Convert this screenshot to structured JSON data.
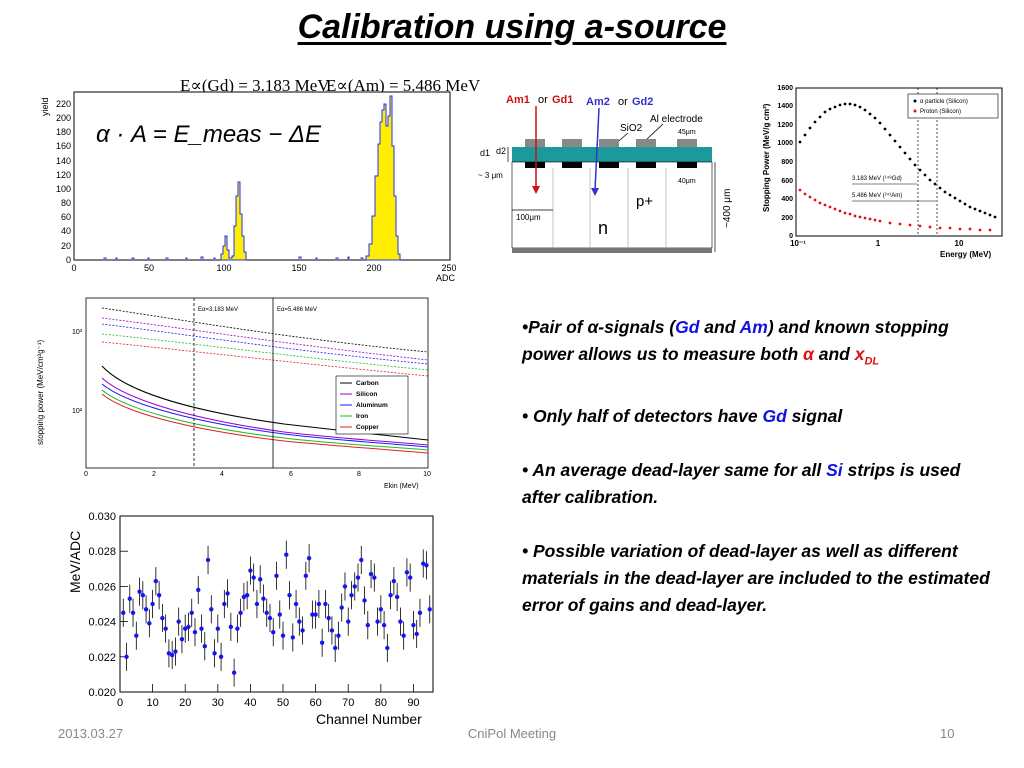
{
  "slide": {
    "title": "Calibration using a-source",
    "date": "2013.03.27",
    "meeting": "CniPol Meeting",
    "page": "10"
  },
  "equations": {
    "gd": "E∝(Gd) = 3.183 MeV",
    "am": "E∝(Am) = 5.486 MeV",
    "formula": "α · A = E_meas − ΔE"
  },
  "bullets": [
    {
      "parts": [
        {
          "text": "•Pair of α-signals (",
          "color": ""
        },
        {
          "text": "Gd",
          "color": "blue"
        },
        {
          "text": " and ",
          "color": ""
        },
        {
          "text": "Am",
          "color": "blue"
        },
        {
          "text": ") and known stopping power allows us to measure both ",
          "color": ""
        },
        {
          "text": "α",
          "color": "red"
        },
        {
          "text": " and ",
          "color": ""
        },
        {
          "text": "x",
          "color": "red"
        },
        {
          "text": "DL",
          "color": "red",
          "sub": true
        }
      ]
    },
    {
      "parts": [
        {
          "text": "• Only half of detectors have ",
          "color": ""
        },
        {
          "text": "Gd",
          "color": "blue"
        },
        {
          "text": " signal",
          "color": ""
        }
      ]
    },
    {
      "parts": [
        {
          "text": "• An average dead-layer same for all ",
          "color": ""
        },
        {
          "text": "Si",
          "color": "blue"
        },
        {
          "text": " strips is used  after calibration.",
          "color": ""
        }
      ]
    },
    {
      "parts": [
        {
          "text": "• Possible variation of dead-layer as well as different materials in the dead-layer  are included to the estimated error of gains and dead-layer.",
          "color": ""
        }
      ]
    }
  ],
  "histogram": {
    "ylabel": "yield",
    "xlabel": "ADC",
    "xticks": [
      "0",
      "50",
      "100",
      "150",
      "200",
      "250"
    ],
    "yticks": [
      "0",
      "20",
      "40",
      "60",
      "80",
      "100",
      "120",
      "140",
      "160",
      "180",
      "200",
      "220"
    ]
  },
  "detector": {
    "am1": "Am1",
    "or1": "or",
    "gd1": "Gd1",
    "am2": "Am2",
    "or2": "or",
    "gd2": "Gd2",
    "al": "Al electrode",
    "sio2": "SiO2",
    "w45": "45μm",
    "d1": "d1",
    "d2": "d2",
    "d3": "~ 3 μm",
    "w40": "40μm",
    "p": "p+",
    "w100": "100μm",
    "n": "n",
    "depth": "~400 μm"
  },
  "stopping_plot": {
    "ylabel": "Stopping Power (MeV/g cm²)",
    "xlabel": "Energy (MeV)",
    "yticks": [
      "0",
      "200",
      "400",
      "600",
      "800",
      "1000",
      "1200",
      "1400",
      "1600"
    ],
    "xticks": [
      "10⁻¹",
      "1",
      "10"
    ],
    "legend": [
      "α particle (Silicon)",
      "Proton (Silicon)"
    ],
    "ann_gd": "3.183 MeV (¹⁴⁸Gd)",
    "ann_am": "5.486 MeV (²⁴¹Am)"
  },
  "materials_plot": {
    "ylabel": "stopping power (MeV/cm²g⁻¹)",
    "xlabel": "Ekin (MeV)",
    "xticks": [
      "0",
      "2",
      "4",
      "6",
      "8",
      "10"
    ],
    "yticks": [
      "10³",
      "10²"
    ],
    "ann_gd": "Eα=3.183 MeV",
    "ann_am": "Eα=5.486 MeV",
    "legend": [
      {
        "name": "Carbon",
        "color": "#000000"
      },
      {
        "name": "Silicon",
        "color": "#9900cc"
      },
      {
        "name": "Aluminum",
        "color": "#1a1aff"
      },
      {
        "name": "Iron",
        "color": "#22bb22"
      },
      {
        "name": "Copper",
        "color": "#dd2222"
      }
    ]
  },
  "chart_data": {
    "type": "scatter",
    "xlabel": "Channel Number",
    "ylabel": "MeV/ADC",
    "xlim": [
      0,
      96
    ],
    "ylim": [
      0.02,
      0.03
    ],
    "xticks": [
      "0",
      "10",
      "20",
      "30",
      "40",
      "50",
      "60",
      "70",
      "80",
      "90"
    ],
    "yticks": [
      "0.020",
      "0.022",
      "0.024",
      "0.026",
      "0.028",
      "0.030"
    ],
    "x": [
      1,
      2,
      3,
      4,
      5,
      6,
      7,
      8,
      9,
      10,
      11,
      12,
      13,
      14,
      15,
      16,
      17,
      18,
      19,
      20,
      21,
      22,
      23,
      24,
      25,
      26,
      27,
      28,
      29,
      30,
      31,
      32,
      33,
      34,
      35,
      36,
      37,
      38,
      39,
      40,
      41,
      42,
      43,
      44,
      45,
      46,
      47,
      48,
      49,
      50,
      51,
      52,
      53,
      54,
      55,
      56,
      57,
      58,
      59,
      60,
      61,
      62,
      63,
      64,
      65,
      66,
      67,
      68,
      69,
      70,
      71,
      72,
      73,
      74,
      75,
      76,
      77,
      78,
      79,
      80,
      81,
      82,
      83,
      84,
      85,
      86,
      87,
      88,
      89,
      90,
      91,
      92,
      93,
      94,
      95
    ],
    "y": [
      0.0245,
      0.022,
      0.0253,
      0.0245,
      0.0232,
      0.0257,
      0.0255,
      0.0247,
      0.0239,
      0.025,
      0.0263,
      0.0255,
      0.0242,
      0.0236,
      0.0222,
      0.0221,
      0.0223,
      0.024,
      0.023,
      0.0236,
      0.0237,
      0.0245,
      0.0234,
      0.0258,
      0.0236,
      0.0226,
      0.0275,
      0.0247,
      0.0222,
      0.0236,
      0.022,
      0.025,
      0.0256,
      0.0237,
      0.0211,
      0.0236,
      0.0245,
      0.0254,
      0.0255,
      0.0269,
      0.0265,
      0.025,
      0.0264,
      0.0253,
      0.0245,
      0.0242,
      0.0234,
      0.0266,
      0.0244,
      0.0232,
      0.0278,
      0.0255,
      0.0231,
      0.025,
      0.024,
      0.0235,
      0.0266,
      0.0276,
      0.0244,
      0.0244,
      0.025,
      0.0228,
      0.025,
      0.0242,
      0.0235,
      0.0225,
      0.0232,
      0.0248,
      0.026,
      0.024,
      0.0255,
      0.026,
      0.0265,
      0.0275,
      0.0252,
      0.0238,
      0.0267,
      0.0265,
      0.024,
      0.0247,
      0.0238,
      0.0225,
      0.0255,
      0.0263,
      0.0254,
      0.024,
      0.0232,
      0.0268,
      0.0265,
      0.0238,
      0.0233,
      0.0245,
      0.0273,
      0.0272,
      0.0247
    ],
    "yerr": 0.0008
  }
}
